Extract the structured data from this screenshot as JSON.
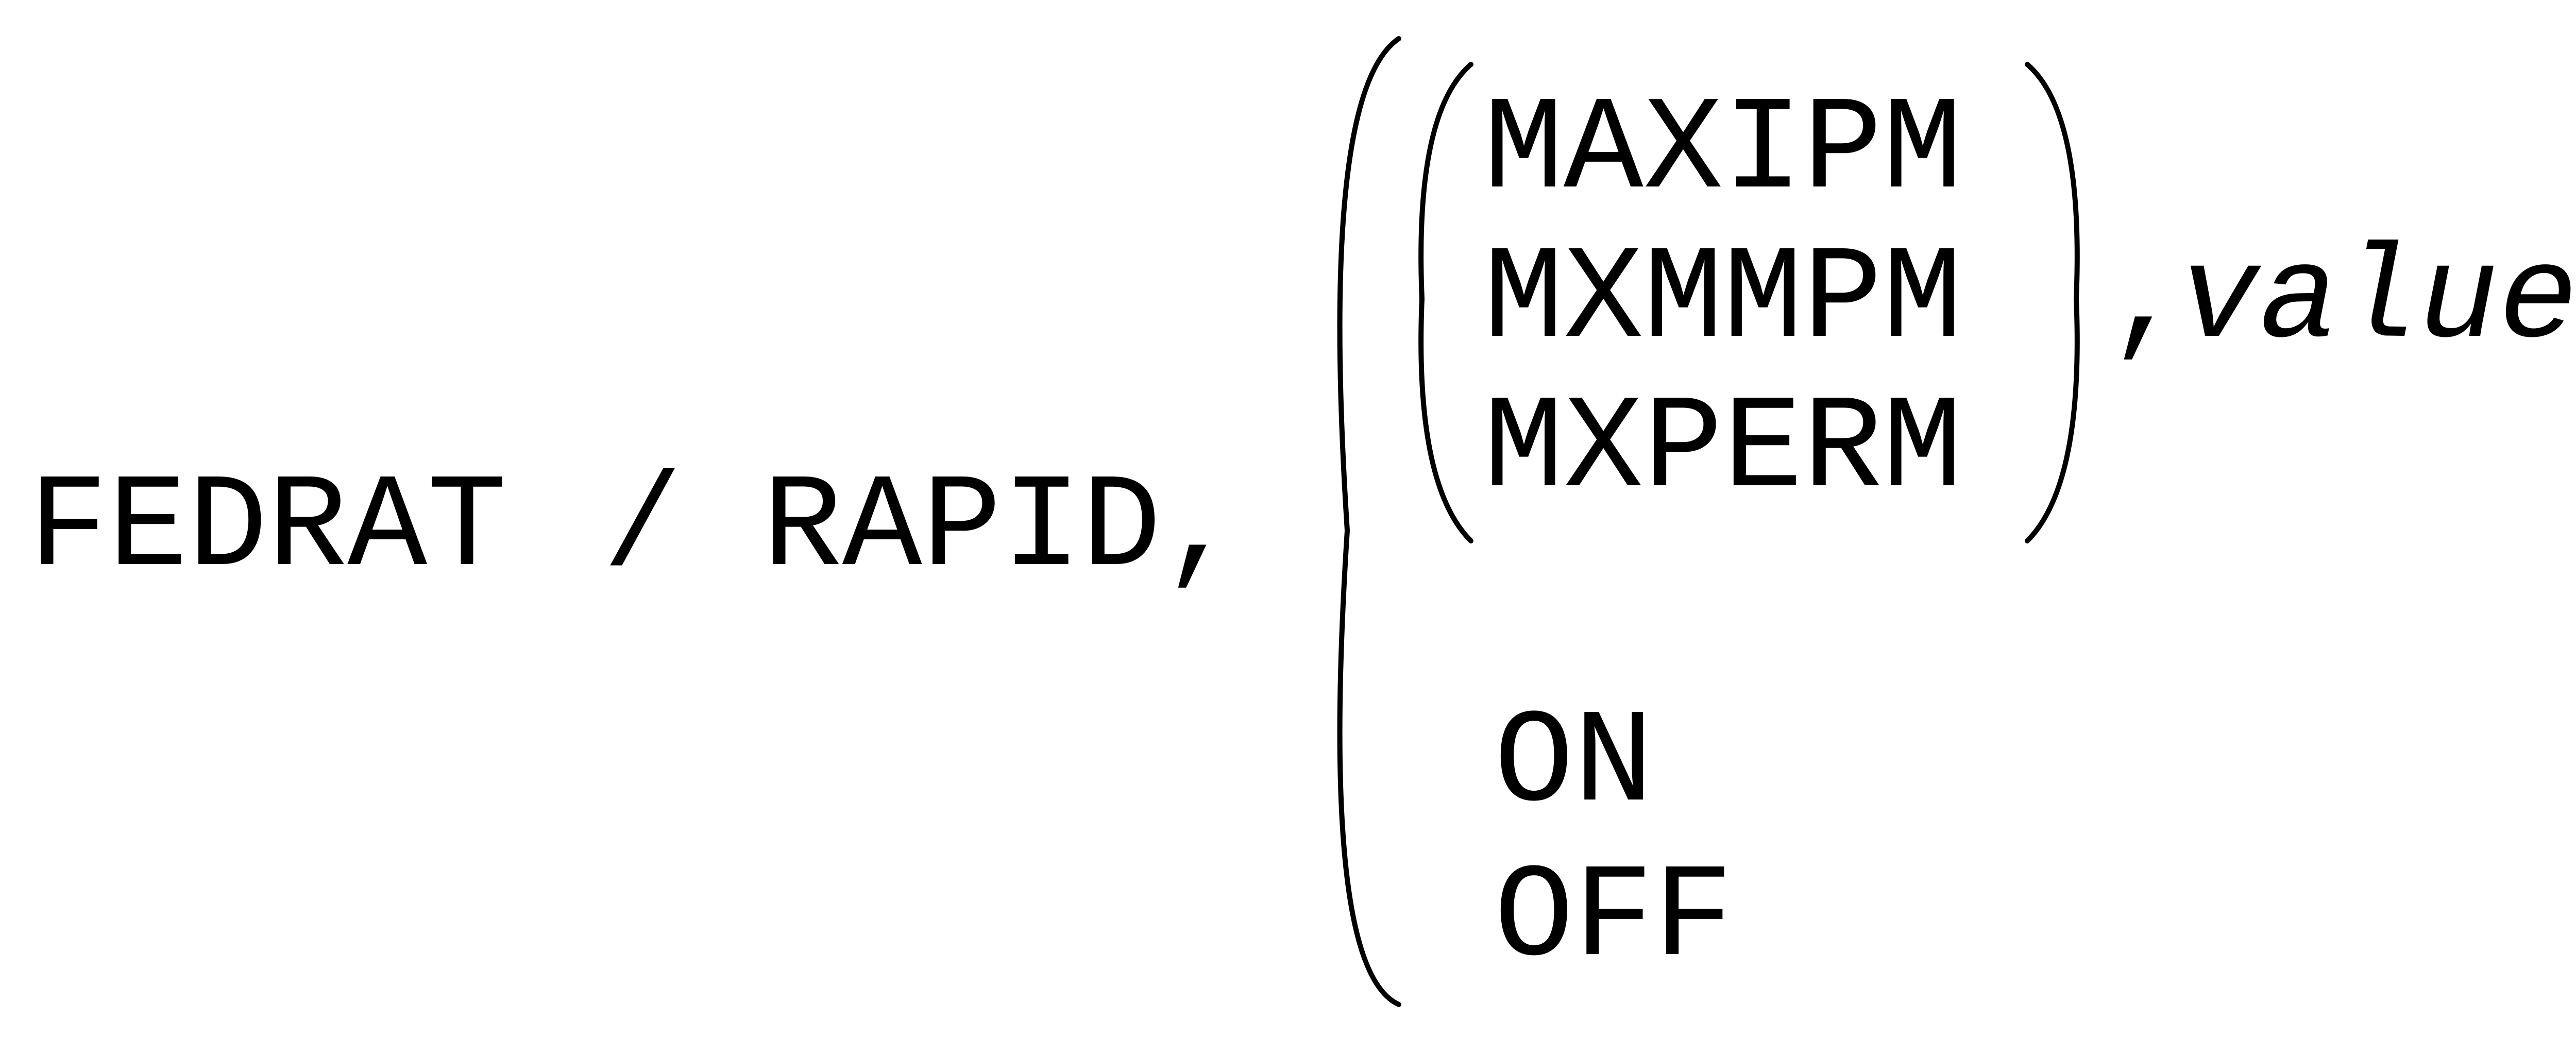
{
  "syntax": {
    "command": "FEDRAT",
    "slash": "/",
    "keyword": "RAPID,",
    "rate_options": [
      "MAXIPM",
      "MXMMPM",
      "MXPERM"
    ],
    "value_separator": ",",
    "value_placeholder": "value",
    "switch_options": [
      "ON",
      "OFF"
    ]
  }
}
